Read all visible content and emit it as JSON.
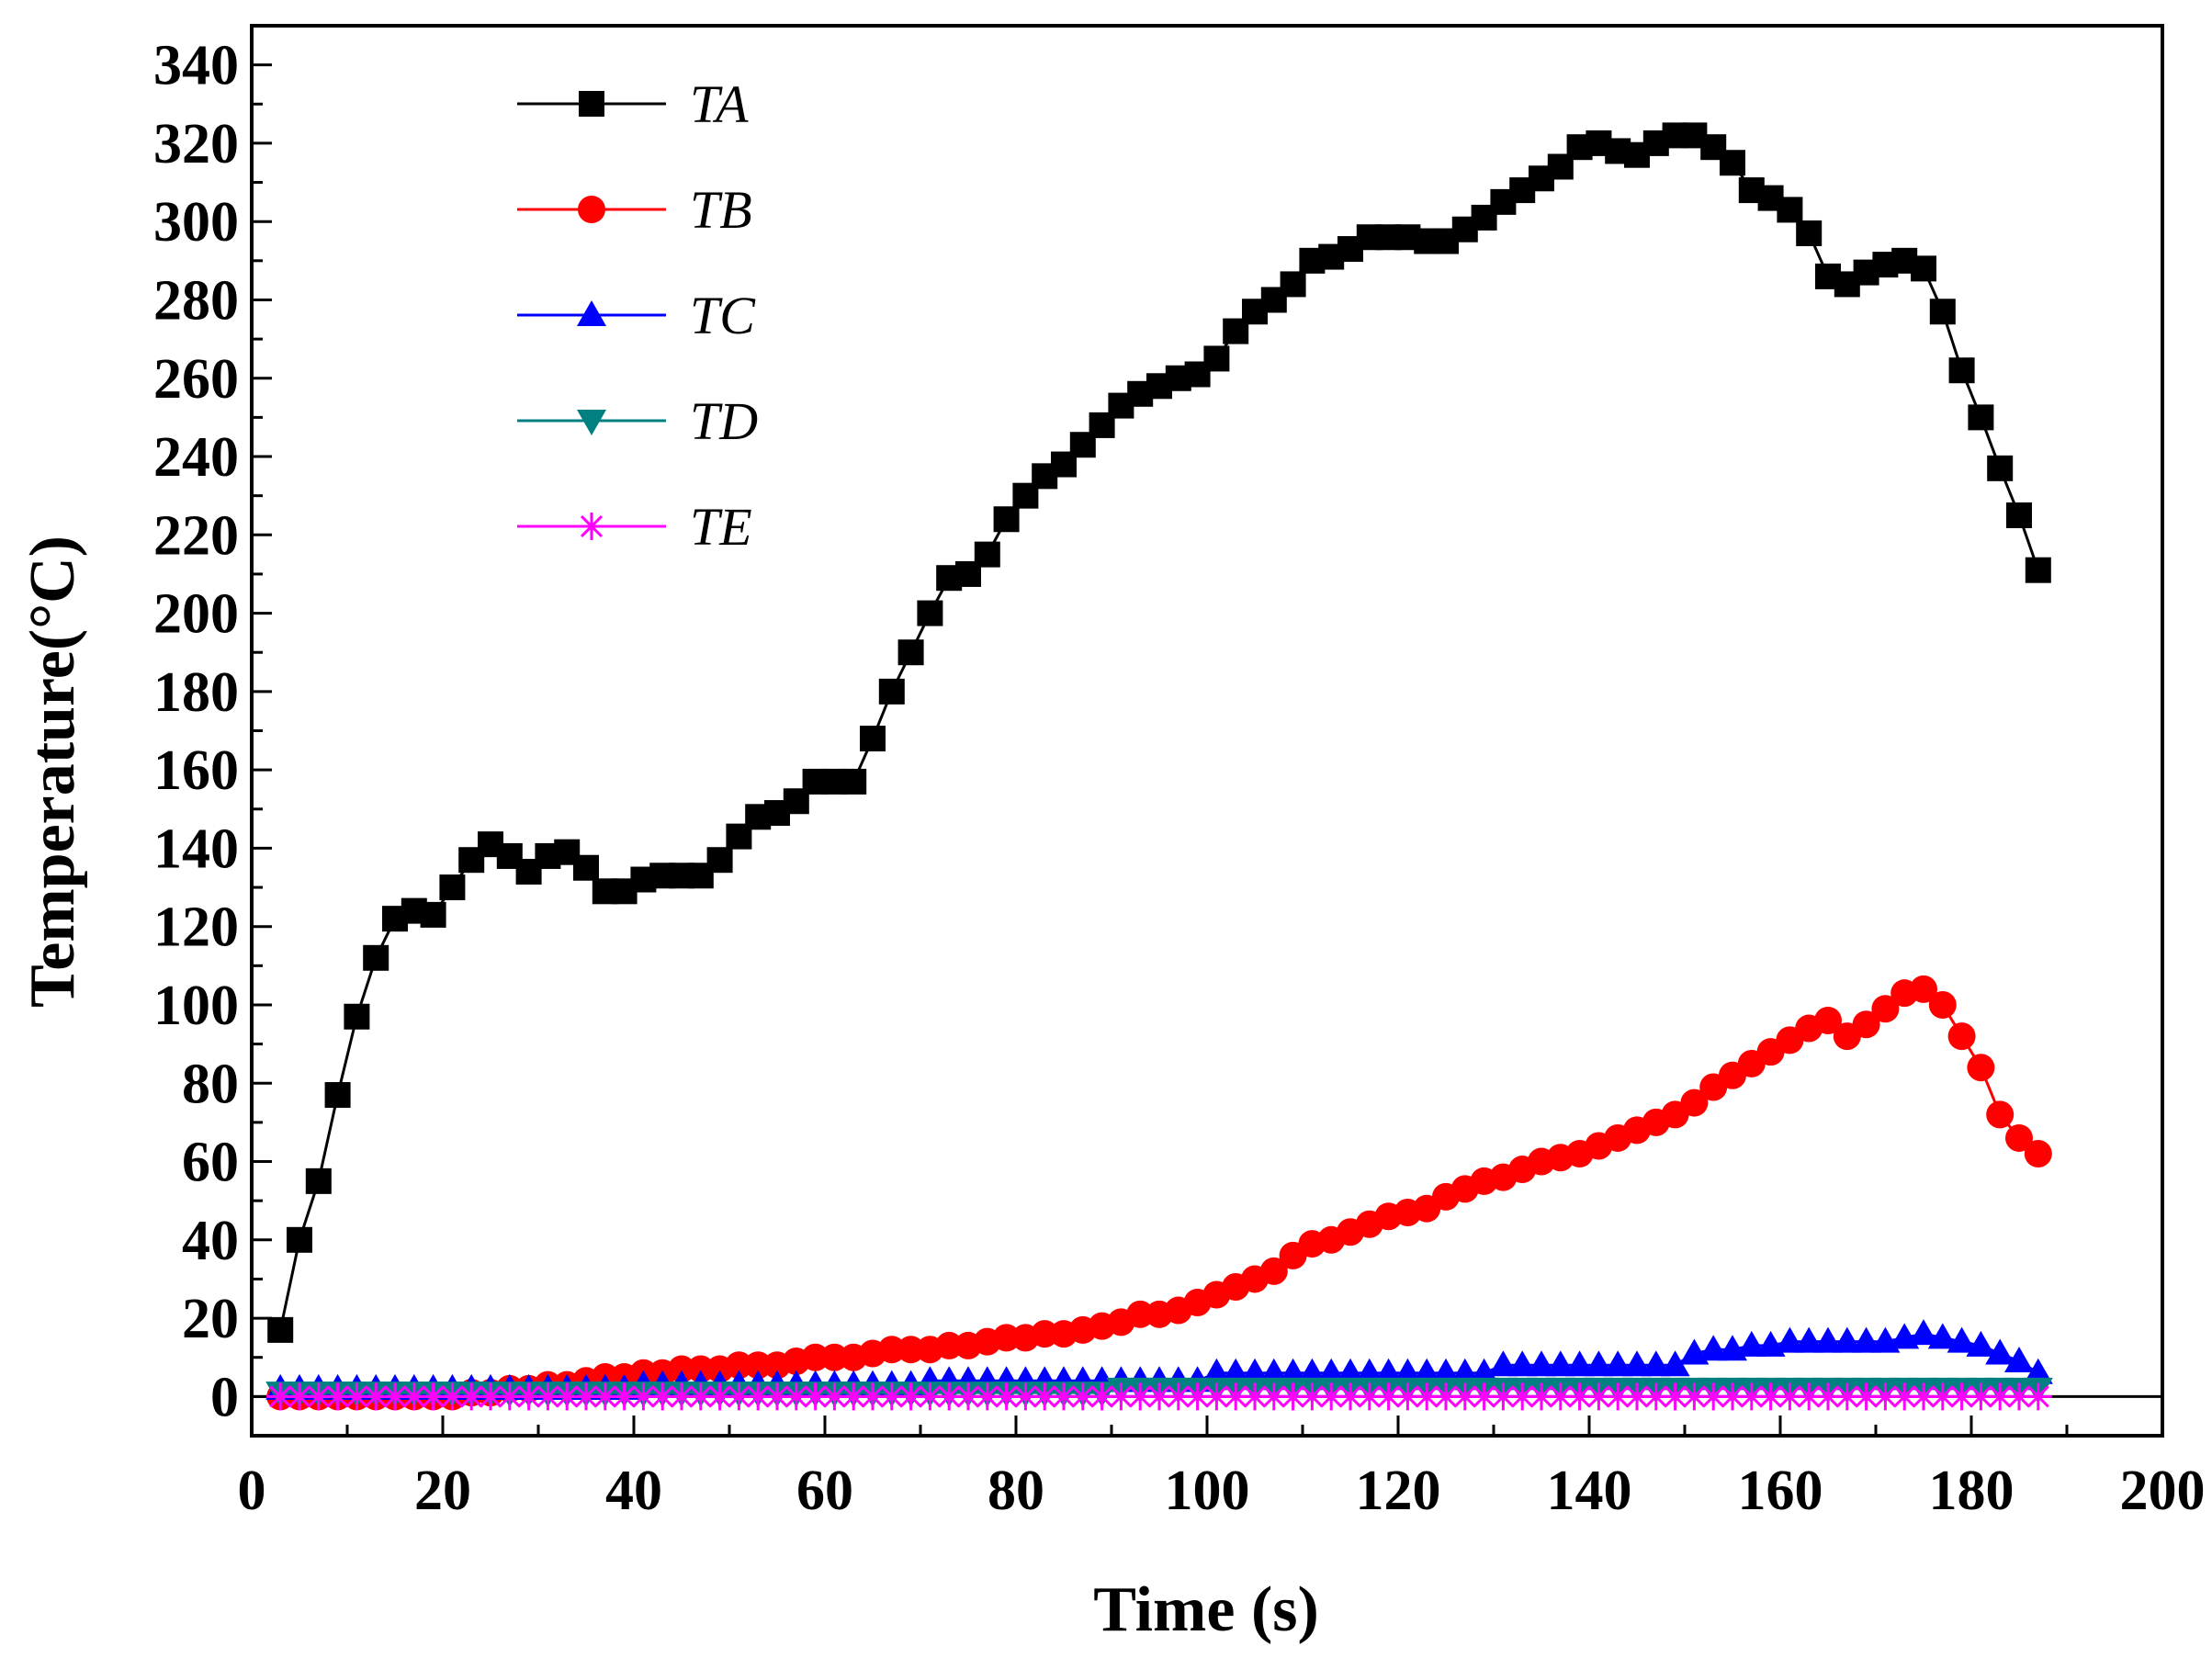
{
  "chart_data": {
    "type": "line",
    "x_label": "Time (s)",
    "y_label": "Temperature(°C)",
    "xlim": [
      0,
      200
    ],
    "ylim": [
      -10,
      350
    ],
    "xticks": [
      0,
      20,
      40,
      60,
      80,
      100,
      120,
      140,
      160,
      180,
      200
    ],
    "yticks": [
      0,
      20,
      40,
      60,
      80,
      100,
      120,
      140,
      160,
      180,
      200,
      220,
      240,
      260,
      280,
      300,
      320,
      340
    ],
    "minor_ticks": true,
    "reference_line": 0,
    "legend": "upper left",
    "x": [
      3,
      5,
      7,
      9,
      11,
      13,
      15,
      17,
      19,
      21,
      23,
      25,
      27,
      29,
      31,
      33,
      35,
      37,
      39,
      41,
      43,
      45,
      47,
      49,
      51,
      53,
      55,
      57,
      59,
      61,
      63,
      65,
      67,
      69,
      71,
      73,
      75,
      77,
      79,
      81,
      83,
      85,
      87,
      89,
      91,
      93,
      95,
      97,
      99,
      101,
      103,
      105,
      107,
      109,
      111,
      113,
      115,
      117,
      119,
      121,
      123,
      125,
      127,
      129,
      131,
      133,
      135,
      137,
      139,
      141,
      143,
      145,
      147,
      149,
      151,
      153,
      155,
      157,
      159,
      161,
      163,
      165,
      167,
      169,
      171,
      173,
      175,
      177,
      179,
      181,
      183,
      185,
      187
    ],
    "series": [
      {
        "name": "TA",
        "color": "#000000",
        "marker": "square",
        "values": [
          17,
          40,
          55,
          77,
          97,
          112,
          122,
          124,
          123,
          130,
          137,
          141,
          138,
          134,
          138,
          139,
          135,
          129,
          129,
          132,
          133,
          133,
          133,
          137,
          143,
          148,
          149,
          152,
          157,
          157,
          157,
          168,
          180,
          190,
          200,
          209,
          210,
          215,
          224,
          230,
          235,
          238,
          243,
          248,
          253,
          256,
          258,
          260,
          261,
          265,
          272,
          277,
          280,
          284,
          290,
          291,
          293,
          296,
          296,
          296,
          295,
          295,
          298,
          301,
          305,
          308,
          311,
          314,
          319,
          320,
          318,
          317,
          320,
          322,
          322,
          319,
          315,
          308,
          306,
          303,
          297,
          286,
          284,
          287,
          289,
          290,
          288,
          277,
          262,
          250,
          237,
          225,
          211
        ]
      },
      {
        "name": "TB",
        "color": "#ff0000",
        "marker": "circle",
        "values": [
          0,
          0,
          0,
          0,
          0,
          0,
          0,
          0,
          0,
          0,
          1,
          1,
          2,
          2,
          3,
          3,
          4,
          5,
          5,
          6,
          6,
          7,
          7,
          7,
          8,
          8,
          8,
          9,
          10,
          10,
          10,
          11,
          12,
          12,
          12,
          13,
          13,
          14,
          15,
          15,
          16,
          16,
          17,
          18,
          19,
          21,
          21,
          22,
          24,
          26,
          28,
          30,
          32,
          36,
          39,
          40,
          42,
          44,
          46,
          47,
          48,
          51,
          53,
          55,
          56,
          58,
          60,
          61,
          62,
          64,
          66,
          68,
          70,
          72,
          75,
          79,
          82,
          85,
          88,
          91,
          94,
          96,
          92,
          95,
          99,
          103,
          104,
          100,
          92,
          84,
          72,
          66,
          62
        ]
      },
      {
        "name": "TC",
        "color": "#0000ff",
        "marker": "triangle-up",
        "values": [
          2,
          2,
          2,
          2,
          2,
          2,
          2,
          2,
          2,
          2,
          2,
          2,
          2,
          2,
          2,
          2,
          2,
          2,
          2,
          3,
          3,
          3,
          3,
          3,
          3,
          3,
          3,
          3,
          3,
          3,
          3,
          3,
          3,
          3,
          4,
          4,
          4,
          4,
          4,
          4,
          4,
          4,
          4,
          4,
          4,
          4,
          4,
          4,
          4,
          6,
          6,
          6,
          6,
          6,
          6,
          6,
          6,
          6,
          6,
          6,
          6,
          6,
          6,
          6,
          8,
          8,
          8,
          8,
          8,
          8,
          8,
          8,
          8,
          8,
          11,
          12,
          12,
          13,
          13,
          14,
          14,
          14,
          14,
          14,
          14,
          15,
          16,
          15,
          14,
          13,
          11,
          9,
          6
        ]
      },
      {
        "name": "TD",
        "color": "#008080",
        "marker": "triangle-down",
        "values": [
          1,
          1,
          1,
          1,
          1,
          1,
          1,
          1,
          1,
          1,
          1,
          1,
          1,
          1,
          1,
          1,
          1,
          1,
          1,
          1,
          1,
          1,
          1,
          1,
          1,
          1,
          1,
          1,
          1,
          1,
          1,
          1,
          1,
          1,
          1,
          1,
          1,
          1,
          1,
          1,
          1,
          1,
          1,
          1,
          2,
          2,
          2,
          2,
          2,
          2,
          2,
          2,
          2,
          2,
          2,
          2,
          2,
          2,
          2,
          2,
          2,
          2,
          2,
          2,
          2,
          2,
          2,
          2,
          2,
          2,
          2,
          2,
          2,
          2,
          2,
          2,
          2,
          2,
          2,
          2,
          2,
          2,
          2,
          2,
          2,
          2,
          2,
          2,
          2,
          2,
          2,
          2,
          2
        ]
      },
      {
        "name": "TE",
        "color": "#ff00ff",
        "marker": "star",
        "values": [
          0,
          0,
          0,
          0,
          0,
          0,
          0,
          0,
          0,
          0,
          0,
          0,
          0,
          0,
          0,
          0,
          0,
          0,
          0,
          0,
          0,
          0,
          0,
          0,
          0,
          0,
          0,
          0,
          0,
          0,
          0,
          0,
          0,
          0,
          0,
          0,
          0,
          0,
          0,
          0,
          0,
          0,
          0,
          0,
          0,
          0,
          0,
          0,
          0,
          0,
          0,
          0,
          0,
          0,
          0,
          0,
          0,
          0,
          0,
          0,
          0,
          0,
          0,
          0,
          0,
          0,
          0,
          0,
          0,
          0,
          0,
          0,
          0,
          0,
          0,
          0,
          0,
          0,
          0,
          0,
          0,
          0,
          0,
          0,
          0,
          0,
          0,
          0,
          0,
          0,
          0,
          0,
          0
        ]
      }
    ]
  }
}
